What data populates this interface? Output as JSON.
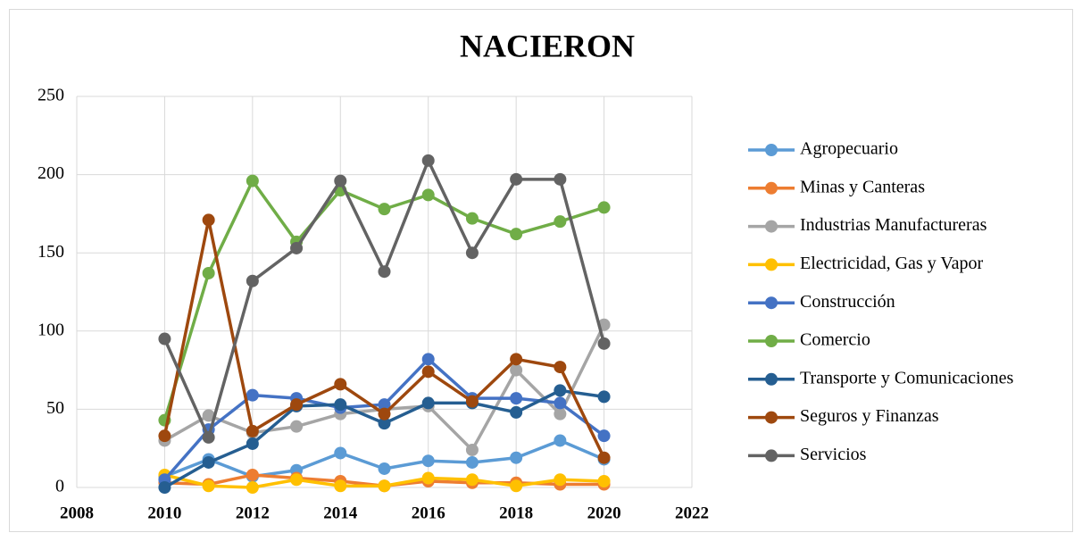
{
  "chart_data": {
    "type": "line",
    "title": "NACIERON",
    "x": [
      2010,
      2011,
      2012,
      2013,
      2014,
      2015,
      2016,
      2017,
      2018,
      2019,
      2020
    ],
    "series": [
      {
        "name": "Agropecuario",
        "color": "#5b9bd5",
        "values": [
          7,
          18,
          7,
          11,
          22,
          12,
          17,
          16,
          19,
          30,
          18
        ]
      },
      {
        "name": "Minas y Canteras",
        "color": "#ed7d31",
        "values": [
          3,
          2,
          8,
          6,
          4,
          1,
          4,
          3,
          3,
          2,
          2
        ]
      },
      {
        "name": "Industrias Manufactureras",
        "color": "#a5a5a5",
        "values": [
          30,
          46,
          35,
          39,
          47,
          50,
          52,
          24,
          75,
          47,
          104
        ]
      },
      {
        "name": "Electricidad, Gas y Vapor",
        "color": "#ffc000",
        "values": [
          8,
          1,
          0,
          5,
          1,
          1,
          6,
          5,
          1,
          5,
          4
        ]
      },
      {
        "name": "Construcción",
        "color": "#4472c4",
        "values": [
          5,
          37,
          59,
          57,
          51,
          53,
          82,
          57,
          57,
          54,
          33
        ]
      },
      {
        "name": "Comercio",
        "color": "#70ad47",
        "values": [
          43,
          137,
          196,
          157,
          190,
          178,
          187,
          172,
          162,
          170,
          179
        ]
      },
      {
        "name": "Transporte y Comunicaciones",
        "color": "#255e91",
        "values": [
          0,
          16,
          28,
          52,
          53,
          41,
          54,
          54,
          48,
          62,
          58
        ]
      },
      {
        "name": "Seguros y Finanzas",
        "color": "#9e480e",
        "values": [
          33,
          171,
          36,
          53,
          66,
          47,
          74,
          55,
          82,
          77,
          19
        ]
      },
      {
        "name": "Servicios",
        "color": "#636363",
        "values": [
          95,
          32,
          132,
          153,
          196,
          138,
          209,
          150,
          197,
          197,
          92
        ]
      }
    ],
    "xlim": [
      2008,
      2022
    ],
    "xticks": [
      2008,
      2010,
      2012,
      2014,
      2016,
      2018,
      2020,
      2022
    ],
    "ylim": [
      0,
      250
    ],
    "yticks": [
      0,
      50,
      100,
      150,
      200,
      250
    ],
    "grid": true,
    "legend": "right"
  }
}
